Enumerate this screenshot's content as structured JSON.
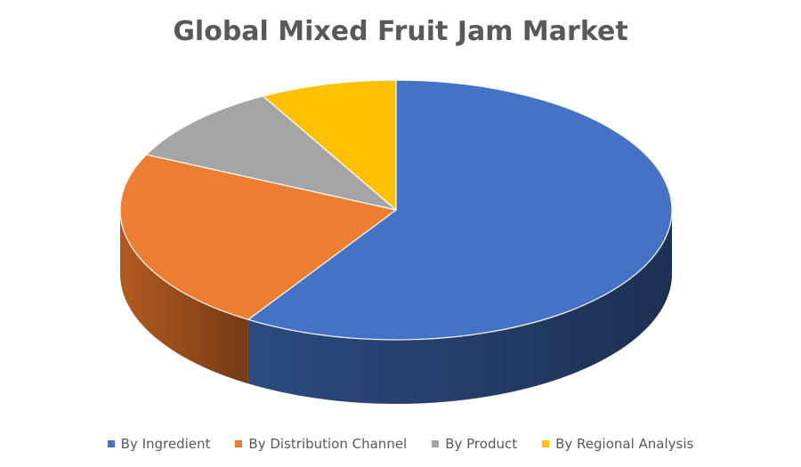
{
  "chart_data": {
    "type": "pie",
    "title": "Global Mixed Fruit Jam Market",
    "legend_position": "bottom",
    "categories": [
      "By Ingredient",
      "By Distribution Channel",
      "By Product",
      "By Regional Analysis"
    ],
    "values": [
      59,
      23,
      10,
      8
    ],
    "colors": [
      "#4472C4",
      "#ED7D31",
      "#A5A5A5",
      "#FFC000"
    ],
    "side_colors": [
      "#2C4A80",
      "#B35A1F",
      "#7A7A7A",
      "#C79500"
    ],
    "style": "3d"
  }
}
